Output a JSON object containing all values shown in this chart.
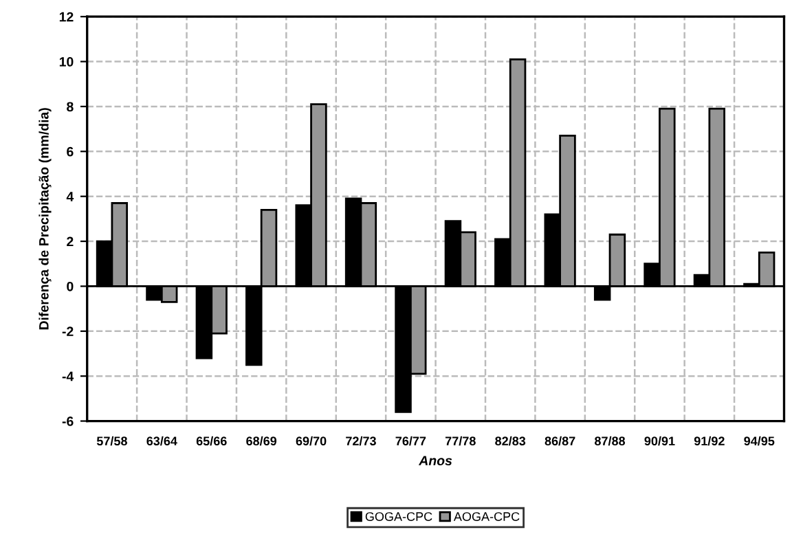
{
  "chart_data": {
    "type": "bar",
    "xlabel": "Anos",
    "ylabel": "Diferença de Precipitação (mm/dia)",
    "categories": [
      "57/58",
      "63/64",
      "65/66",
      "68/69",
      "69/70",
      "72/73",
      "76/77",
      "77/78",
      "82/83",
      "86/87",
      "87/88",
      "90/91",
      "91/92",
      "94/95"
    ],
    "series": [
      {
        "name": "GOGA-CPC",
        "color": "#000000",
        "values": [
          2.0,
          -0.6,
          -3.2,
          -3.5,
          3.6,
          3.9,
          -5.6,
          2.9,
          2.1,
          3.2,
          -0.6,
          1.0,
          0.5,
          0.1
        ]
      },
      {
        "name": "AOGA-CPC",
        "color": "#969696",
        "values": [
          3.7,
          -0.7,
          -2.1,
          3.4,
          8.1,
          3.7,
          -3.9,
          2.4,
          10.1,
          6.7,
          2.3,
          7.9,
          7.9,
          1.5
        ]
      }
    ],
    "ylim": [
      -6,
      12
    ],
    "yticks": [
      -6,
      -4,
      -2,
      0,
      2,
      4,
      6,
      8,
      10,
      12
    ],
    "grid": true,
    "legend": "bottom"
  }
}
